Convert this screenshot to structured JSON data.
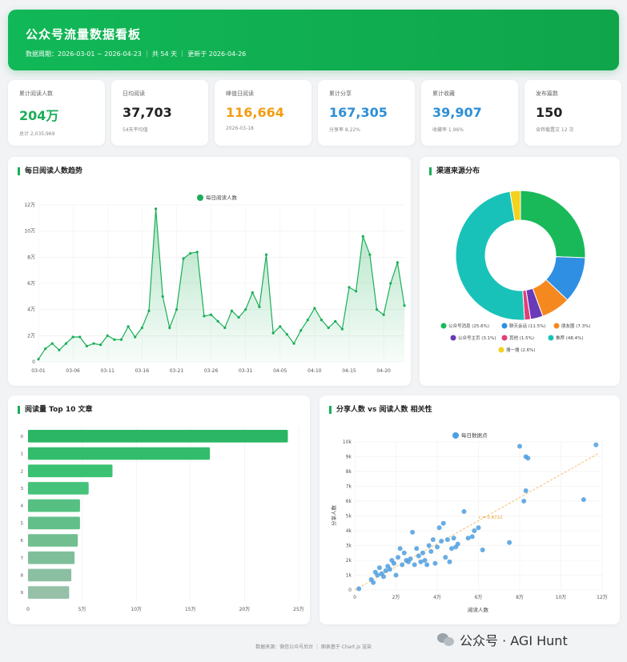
{
  "header": {
    "title": "公众号流量数据看板",
    "meta": "数据周期：2026-03-01 ~ 2026-04-23  ｜  共 54 天  ｜  更新于 2026-04-26"
  },
  "kpis": [
    {
      "label": "累计阅读人数",
      "value": "204万",
      "sub": "总计 2,035,969",
      "color": "#1aae57"
    },
    {
      "label": "日均阅读",
      "value": "37,703",
      "sub": "54天平均值",
      "color": "#222222"
    },
    {
      "label": "峰值日阅读",
      "value": "116,664",
      "sub": "2026-03-18",
      "color": "#f39c12"
    },
    {
      "label": "累计分享",
      "value": "167,305",
      "sub": "分享率 8.22%",
      "color": "#2e8fd6"
    },
    {
      "label": "累计收藏",
      "value": "39,907",
      "sub": "收藏率 1.96%",
      "color": "#2e8fd6"
    },
    {
      "label": "发布篇数",
      "value": "150",
      "sub": "含转载置文 12 次",
      "color": "#222222"
    }
  ],
  "cards": {
    "trend": "每日阅读人数趋势",
    "source": "渠道来源分布",
    "top10": "阅读量 Top 10 文章",
    "scatter": "分享人数 vs 阅读人数 相关性"
  },
  "footer": "数据来源：微信公众号后台  ｜  图表基于 Chart.js 渲染",
  "watermark": "公众号 · AGI Hunt",
  "chart_data": [
    {
      "type": "line",
      "legend": "每日阅读人数",
      "color": "#1aae57",
      "x_tick_labels": [
        "03-01",
        "03-06",
        "03-11",
        "03-16",
        "03-21",
        "03-26",
        "03-31",
        "04-05",
        "04-10",
        "04-15",
        "04-20"
      ],
      "y_tick_labels": [
        "0",
        "2万",
        "4万",
        "6万",
        "8万",
        "10万",
        "12万"
      ],
      "ylim": [
        0,
        120000
      ],
      "values": [
        2000,
        10000,
        14000,
        9000,
        14000,
        19000,
        19000,
        12000,
        14000,
        13000,
        20000,
        17000,
        17000,
        27000,
        19000,
        26000,
        39000,
        117000,
        50000,
        26000,
        40000,
        79000,
        83000,
        84000,
        35000,
        36000,
        31000,
        26000,
        39000,
        34000,
        40000,
        53000,
        42000,
        82000,
        22000,
        27000,
        21000,
        14000,
        24000,
        32000,
        41000,
        32000,
        26000,
        31000,
        25000,
        57000,
        54000,
        96000,
        82000,
        40000,
        36000,
        60000,
        76000,
        43000
      ]
    },
    {
      "type": "pie",
      "labels": [
        "公众号消息 (25.6%)",
        "聊天会话 (11.5%)",
        "朋友圈 (7.3%)",
        "公众号主页 (3.1%)",
        "其他 (1.5%)",
        "推荐 (48.4%)",
        "搜一搜 (2.6%)"
      ],
      "values": [
        25.6,
        11.5,
        7.3,
        3.1,
        1.5,
        48.4,
        2.6
      ],
      "colors": [
        "#19b95a",
        "#2f8fe3",
        "#f5891f",
        "#6a3ab8",
        "#e0407a",
        "#19c2b8",
        "#f4d21d"
      ]
    },
    {
      "type": "bar",
      "orientation": "horizontal",
      "categories": [
        "0",
        "1",
        "2",
        "3",
        "4",
        "5",
        "6",
        "7",
        "8",
        "9"
      ],
      "values": [
        240000,
        168000,
        78000,
        56000,
        48000,
        48000,
        46000,
        43000,
        40000,
        38000
      ],
      "x_tick_labels": [
        "0",
        "5万",
        "10万",
        "15万",
        "20万",
        "25万"
      ],
      "xlim": [
        0,
        250000
      ]
    },
    {
      "type": "scatter",
      "legend": "每日数据点",
      "xlabel": "阅读人数",
      "ylabel": "分享人数",
      "annotation": "r = 0.8722",
      "x_tick_labels": [
        "0",
        "2万",
        "4万",
        "6万",
        "8万",
        "10万",
        "12万"
      ],
      "y_tick_labels": [
        "0",
        "1k",
        "2k",
        "3k",
        "4k",
        "5k",
        "6k",
        "7k",
        "8k",
        "9k",
        "10k"
      ],
      "xlim": [
        0,
        120000
      ],
      "ylim": [
        0,
        10000
      ],
      "points": [
        [
          2000,
          80
        ],
        [
          8000,
          700
        ],
        [
          9000,
          500
        ],
        [
          10000,
          1200
        ],
        [
          11000,
          1000
        ],
        [
          12000,
          1500
        ],
        [
          13000,
          1100
        ],
        [
          14000,
          900
        ],
        [
          15000,
          1300
        ],
        [
          16000,
          1600
        ],
        [
          17000,
          1400
        ],
        [
          18000,
          2000
        ],
        [
          19000,
          1800
        ],
        [
          20000,
          1000
        ],
        [
          21000,
          2200
        ],
        [
          22000,
          2800
        ],
        [
          23000,
          1700
        ],
        [
          24000,
          2500
        ],
        [
          25000,
          2000
        ],
        [
          26000,
          1900
        ],
        [
          27000,
          2100
        ],
        [
          28000,
          3900
        ],
        [
          29000,
          1700
        ],
        [
          30000,
          2800
        ],
        [
          31000,
          2300
        ],
        [
          32000,
          1900
        ],
        [
          33000,
          2500
        ],
        [
          34000,
          2000
        ],
        [
          35000,
          1700
        ],
        [
          36000,
          3000
        ],
        [
          37000,
          2600
        ],
        [
          38000,
          3400
        ],
        [
          39000,
          1800
        ],
        [
          40000,
          2900
        ],
        [
          41000,
          4200
        ],
        [
          42000,
          3300
        ],
        [
          43000,
          4500
        ],
        [
          44000,
          2200
        ],
        [
          45000,
          3400
        ],
        [
          46000,
          1900
        ],
        [
          47000,
          2800
        ],
        [
          48000,
          3500
        ],
        [
          49000,
          2900
        ],
        [
          50000,
          3100
        ],
        [
          53000,
          5300
        ],
        [
          55000,
          3500
        ],
        [
          57000,
          3600
        ],
        [
          58000,
          4000
        ],
        [
          60000,
          4200
        ],
        [
          62000,
          2700
        ],
        [
          75000,
          3200
        ],
        [
          80000,
          9700
        ],
        [
          82000,
          6000
        ],
        [
          83000,
          9000
        ],
        [
          84000,
          8900
        ],
        [
          83000,
          6700
        ],
        [
          111000,
          6100
        ],
        [
          117000,
          9800
        ]
      ]
    }
  ]
}
